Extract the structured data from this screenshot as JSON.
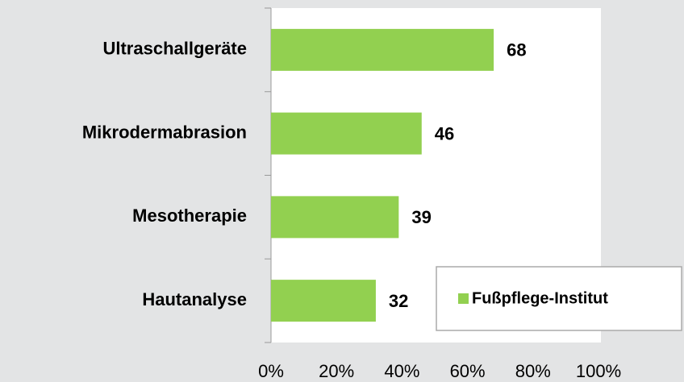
{
  "chart_data": {
    "type": "bar",
    "orientation": "horizontal",
    "categories": [
      "Ultraschallgeräte",
      "Mikrodermabrasion",
      "Mesotherapie",
      "Hautanalyse"
    ],
    "series": [
      {
        "name": "Fußpflege-Institut",
        "color": "#92d050",
        "values": [
          68,
          46,
          39,
          32
        ]
      }
    ],
    "xlim": [
      0,
      100
    ],
    "xticks": [
      {
        "value": 0,
        "label": "0%"
      },
      {
        "value": 20,
        "label": "20%"
      },
      {
        "value": 40,
        "label": "40%"
      },
      {
        "value": 60,
        "label": "60%"
      },
      {
        "value": 80,
        "label": "80%"
      },
      {
        "value": 100,
        "label": "100%"
      }
    ],
    "grid": false,
    "legend": "bottom-right"
  }
}
